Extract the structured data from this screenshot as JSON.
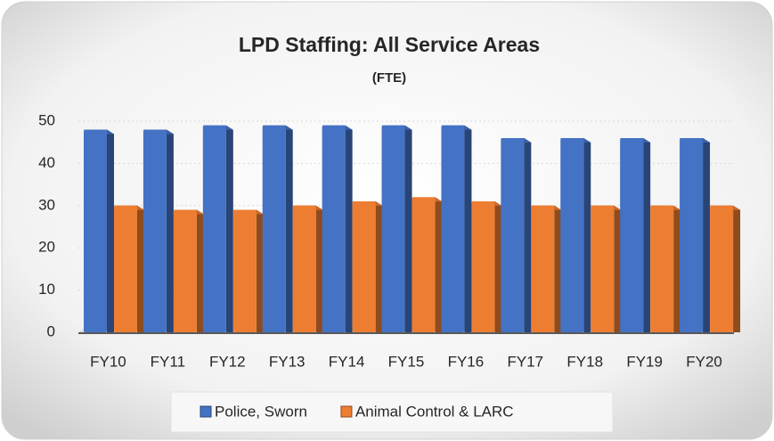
{
  "chart_data": {
    "type": "bar",
    "title": "LPD Staffing: All Service Areas",
    "subtitle": "(FTE)",
    "categories": [
      "FY10",
      "FY11",
      "FY12",
      "FY13",
      "FY14",
      "FY15",
      "FY16",
      "FY17",
      "FY18",
      "FY19",
      "FY20"
    ],
    "series": [
      {
        "name": "Police, Sworn",
        "color": "#4472c4",
        "values": [
          48,
          48,
          49,
          49,
          49,
          49,
          49,
          46,
          46,
          46,
          46
        ]
      },
      {
        "name": "Animal Control & LARC",
        "color": "#ed7d31",
        "values": [
          30,
          29,
          29,
          30,
          31,
          32,
          31,
          30,
          30,
          30,
          30
        ]
      }
    ],
    "ylim": [
      0,
      50
    ],
    "yticks": [
      0,
      10,
      20,
      30,
      40,
      50
    ],
    "grid": true,
    "legend": "bottom"
  }
}
